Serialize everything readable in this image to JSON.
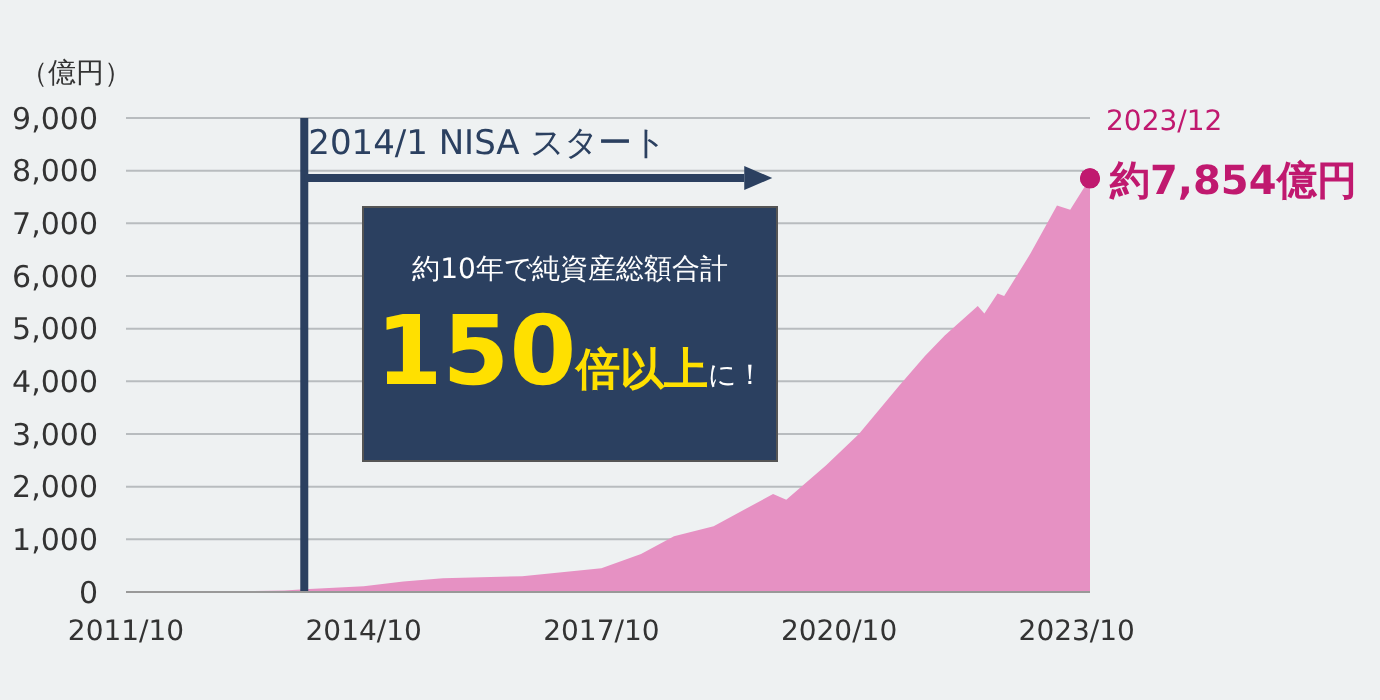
{
  "chart_data": {
    "type": "area",
    "ylabel": "（億円）",
    "color": "#e691c3",
    "x": [
      "2011-10",
      "2012-10",
      "2013-10",
      "2014-01",
      "2014-10",
      "2015-04",
      "2015-10",
      "2016-10",
      "2017-10",
      "2018-04",
      "2018-09",
      "2019-03",
      "2019-12",
      "2020-02",
      "2020-08",
      "2021-01",
      "2021-07",
      "2021-11",
      "2022-02",
      "2022-07",
      "2022-08",
      "2022-10",
      "2022-11",
      "2023-03",
      "2023-07",
      "2023-09",
      "2023-12"
    ],
    "values": [
      0,
      0,
      30,
      50,
      110,
      200,
      260,
      300,
      450,
      720,
      1060,
      1250,
      1860,
      1750,
      2400,
      3000,
      3900,
      4480,
      4870,
      5430,
      5290,
      5670,
      5620,
      6430,
      7340,
      7260,
      7854
    ],
    "xlim": [
      "2011-10",
      "2023-12"
    ],
    "xticks": [
      {
        "value": "2011-10",
        "label": "2011/10"
      },
      {
        "value": "2014-10",
        "label": "2014/10"
      },
      {
        "value": "2017-10",
        "label": "2017/10"
      },
      {
        "value": "2020-10",
        "label": "2020/10"
      },
      {
        "value": "2023-10",
        "label": "2023/10"
      }
    ],
    "ylim": [
      0,
      9000
    ],
    "yticks": [
      0,
      {
        "value": 1000,
        "label": "1,000"
      },
      {
        "value": 2000,
        "label": "2,000"
      },
      {
        "value": 3000,
        "label": "3,000"
      },
      {
        "value": 4000,
        "label": "4,000"
      },
      {
        "value": 5000,
        "label": "5,000"
      },
      {
        "value": 6000,
        "label": "6,000"
      },
      {
        "value": 7000,
        "label": "7,000"
      },
      {
        "value": 8000,
        "label": "8,000"
      },
      {
        "value": 9000,
        "label": "9,000"
      }
    ],
    "grid": "y",
    "ref_lines": [
      {
        "axis": "x",
        "value": "2014-01",
        "label": "2014/1 NISA スタート",
        "color": "#2b4060"
      }
    ],
    "annotations": [
      "約10年で純資産総額合計",
      "150倍以上に！",
      {
        "text": "2023/12",
        "x": "2023-12",
        "y": 7854
      },
      {
        "text": "約7,854億円",
        "x": "2023-12",
        "y": 7854
      }
    ]
  }
}
